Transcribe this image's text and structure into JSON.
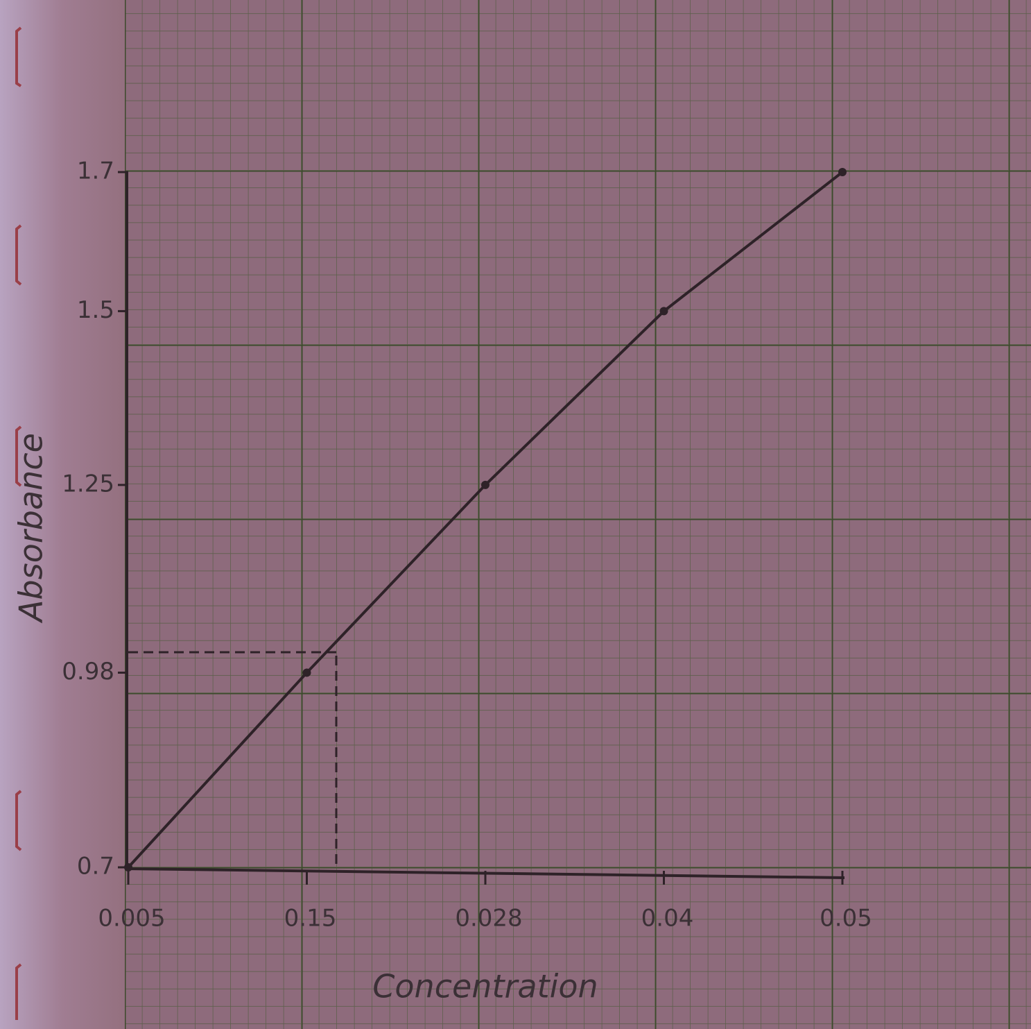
{
  "chart_data": {
    "type": "line",
    "x_label": "Concentration",
    "y_label": "Absorbance",
    "categories": [
      "0.005",
      "0.15",
      "0.028",
      "0.04",
      "0.05"
    ],
    "values": [
      0.7,
      0.98,
      1.25,
      1.5,
      1.7
    ],
    "color": "#2e2228",
    "ylim": [
      0.7,
      1.7
    ],
    "yticks": [
      0.7,
      0.98,
      1.25,
      1.5,
      1.7
    ]
  }
}
